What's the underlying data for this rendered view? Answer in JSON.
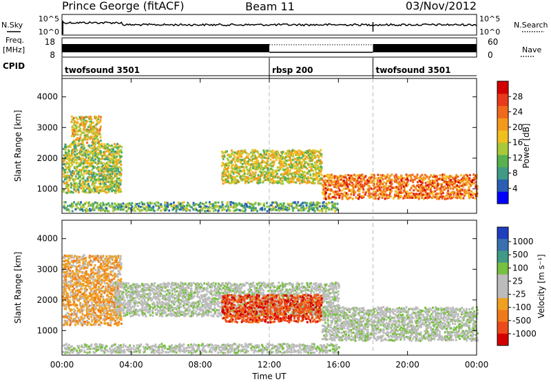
{
  "header": {
    "station": "Prince George (fitACF)",
    "beam": "Beam 11",
    "date": "03/Nov/2012"
  },
  "noise_panel": {
    "left_label": "N.Sky",
    "right_label": "N.Search",
    "ticks": [
      "10^5",
      "10^0"
    ]
  },
  "freq_panel": {
    "left_label_1": "Freq.",
    "left_label_2": "[MHz]",
    "left_ticks": [
      "18",
      "8"
    ],
    "right_ticks": [
      "60",
      "0"
    ],
    "right_label": "Nave"
  },
  "cpid": {
    "label": "CPID",
    "segments": [
      {
        "name": "twofsound 3501",
        "start_h": 0
      },
      {
        "name": "rbsp 200",
        "start_h": 12
      },
      {
        "name": "twofsound 3501",
        "start_h": 18
      }
    ]
  },
  "x_axis": {
    "label": "Time UT",
    "ticks": [
      "00:00",
      "04:00",
      "08:00",
      "12:00",
      "16:00",
      "20:00",
      "00:00"
    ]
  },
  "colors": {
    "power": [
      "#0000ff",
      "#2a5fb3",
      "#3f9a86",
      "#58b04e",
      "#a9c93a",
      "#f0c020",
      "#f39a1e",
      "#ef6a1c",
      "#e83a1a",
      "#d40000"
    ],
    "velocity": [
      "#1f3fbf",
      "#3a6fb0",
      "#3f9a86",
      "#78c040",
      "#bcbcbc",
      "#bcbcbc",
      "#f0a020",
      "#f07a1a",
      "#ec4a1a",
      "#d40000"
    ]
  },
  "chart_data": [
    {
      "type": "heatmap",
      "title": "Power",
      "xlabel": "Time UT",
      "ylabel": "Slant Range [km]",
      "xlim_h": [
        0,
        24
      ],
      "ylim": [
        200,
        4600
      ],
      "yticks": [
        1000,
        2000,
        3000,
        4000
      ],
      "colorbar": {
        "label": "Power [dB]",
        "range": [
          0,
          32
        ],
        "ticks": [
          "4",
          "8",
          "12",
          "16",
          "20",
          "24",
          "28"
        ]
      },
      "echo_regions": [
        {
          "t0": 0.0,
          "t1": 3.4,
          "r0": 900,
          "r1": 2500,
          "value": 14
        },
        {
          "t0": 0.5,
          "t1": 2.2,
          "r0": 2500,
          "r1": 3400,
          "value": 18
        },
        {
          "t0": 9.2,
          "t1": 15.0,
          "r0": 1200,
          "r1": 2300,
          "value": 16
        },
        {
          "t0": 15.0,
          "t1": 24.0,
          "r0": 700,
          "r1": 1500,
          "value": 24
        },
        {
          "t0": 0.0,
          "t1": 16.0,
          "r0": 300,
          "r1": 600,
          "value": 10
        }
      ]
    },
    {
      "type": "heatmap",
      "title": "Velocity",
      "xlabel": "Time UT",
      "ylabel": "Slant Range [km]",
      "xlim_h": [
        0,
        24
      ],
      "ylim": [
        200,
        4600
      ],
      "yticks": [
        1000,
        2000,
        3000,
        4000
      ],
      "colorbar": {
        "label": "Velocity [m s^-1]",
        "ticks": [
          "1000",
          "500",
          "100",
          "25",
          "-25",
          "-100",
          "-500",
          "-1000"
        ]
      },
      "echo_regions": [
        {
          "t0": 0.0,
          "t1": 3.4,
          "r0": 1200,
          "r1": 3500,
          "value": -200
        },
        {
          "t0": 3.0,
          "t1": 16.0,
          "r0": 1500,
          "r1": 2600,
          "value": 0
        },
        {
          "t0": 9.2,
          "t1": 15.0,
          "r0": 1300,
          "r1": 2200,
          "value": -300
        },
        {
          "t0": 15.0,
          "t1": 24.0,
          "r0": 700,
          "r1": 1800,
          "value": 0
        },
        {
          "t0": 0.0,
          "t1": 16.0,
          "r0": 300,
          "r1": 600,
          "value": 50
        }
      ]
    }
  ]
}
